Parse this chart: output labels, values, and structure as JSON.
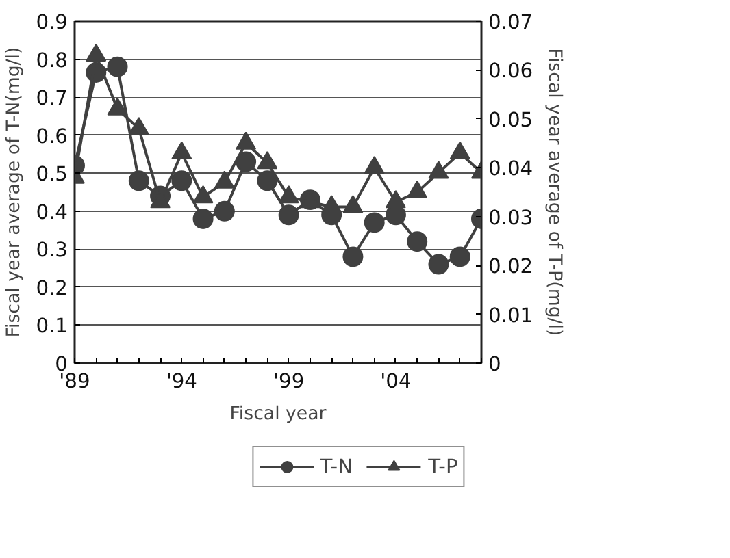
{
  "chart_data": {
    "type": "line",
    "xlabel": "Fiscal year",
    "ylabel": "Fiscal year average of T-N(mg/l)",
    "y2label": "Fiscal year average of T-P(mg/l)",
    "x": [
      1989,
      1990,
      1991,
      1992,
      1993,
      1994,
      1995,
      1996,
      1997,
      1998,
      1999,
      2000,
      2001,
      2002,
      2003,
      2004,
      2005,
      2006,
      2007,
      2008
    ],
    "xlim": [
      1989,
      2008
    ],
    "xticks": [
      {
        "value": 1989,
        "label": "'89"
      },
      {
        "value": 1990,
        "label": null
      },
      {
        "value": 1991,
        "label": null
      },
      {
        "value": 1992,
        "label": null
      },
      {
        "value": 1993,
        "label": null
      },
      {
        "value": 1994,
        "label": "'94"
      },
      {
        "value": 1995,
        "label": null
      },
      {
        "value": 1996,
        "label": null
      },
      {
        "value": 1997,
        "label": null
      },
      {
        "value": 1998,
        "label": null
      },
      {
        "value": 1999,
        "label": "'99"
      },
      {
        "value": 2000,
        "label": null
      },
      {
        "value": 2001,
        "label": null
      },
      {
        "value": 2002,
        "label": null
      },
      {
        "value": 2003,
        "label": null
      },
      {
        "value": 2004,
        "label": "'04"
      },
      {
        "value": 2005,
        "label": null
      },
      {
        "value": 2006,
        "label": null
      },
      {
        "value": 2007,
        "label": null
      },
      {
        "value": 2008,
        "label": null
      }
    ],
    "ylim": [
      0,
      0.9
    ],
    "yticks": [
      0,
      0.1,
      0.2,
      0.3,
      0.4,
      0.5,
      0.6,
      0.7,
      0.8,
      0.9
    ],
    "y2lim": [
      0,
      0.07
    ],
    "y2ticks": [
      0,
      0.01,
      0.02,
      0.03,
      0.04,
      0.05,
      0.06,
      0.07
    ],
    "grid": "y",
    "legend": "bottom",
    "series": [
      {
        "name": "T-N",
        "color": "#404040",
        "marker": "circle",
        "values": [
          0.52,
          0.765,
          0.78,
          0.48,
          0.44,
          0.48,
          0.38,
          0.4,
          0.53,
          0.48,
          0.39,
          0.43,
          0.39,
          0.28,
          0.37,
          0.39,
          0.32,
          0.26,
          0.28,
          0.38
        ]
      },
      {
        "name": "T-P",
        "color": "#404040",
        "marker": "triangle",
        "axis": "y2",
        "values": [
          0.038,
          0.063,
          0.052,
          0.048,
          0.033,
          0.043,
          0.034,
          0.037,
          0.045,
          0.041,
          0.034,
          0.033,
          0.032,
          0.032,
          0.04,
          0.033,
          0.035,
          0.039,
          0.043,
          0.039
        ]
      }
    ]
  }
}
